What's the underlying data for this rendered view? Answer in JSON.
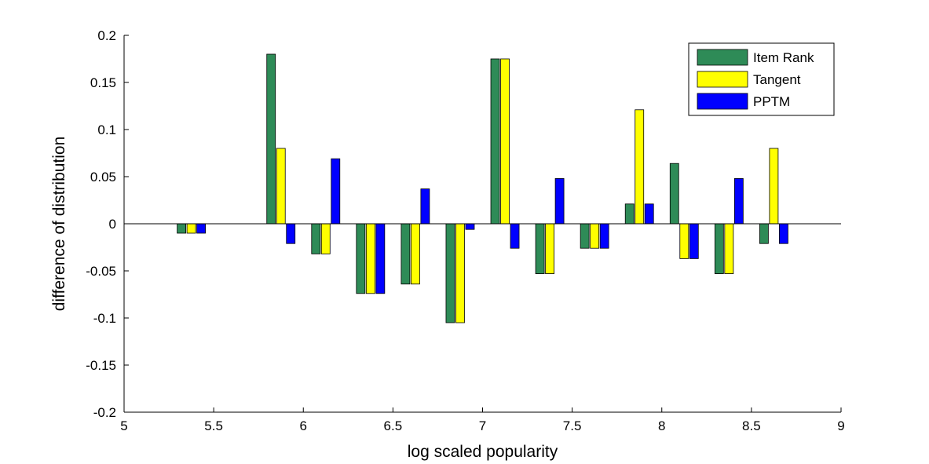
{
  "chart_data": {
    "type": "bar",
    "title": "",
    "xlabel": "log scaled popularity",
    "ylabel": "difference of distribution",
    "xlim": [
      5,
      9
    ],
    "ylim": [
      -0.2,
      0.2
    ],
    "xticks": [
      "5",
      "5.5",
      "6",
      "6.5",
      "7",
      "7.5",
      "8",
      "8.5",
      "9"
    ],
    "yticks": [
      "-0.2",
      "-0.15",
      "-0.1",
      "-0.05",
      "0",
      "0.05",
      "0.1",
      "0.15",
      "0.2"
    ],
    "grid": false,
    "legend_position": "top-right",
    "x": [
      5.375,
      5.875,
      6.125,
      6.375,
      6.625,
      6.875,
      7.125,
      7.375,
      7.625,
      7.875,
      8.125,
      8.375,
      8.625
    ],
    "series": [
      {
        "name": "Item Rank",
        "color": "#2e8b57",
        "values": [
          -0.01,
          0.18,
          -0.032,
          -0.074,
          -0.064,
          -0.105,
          0.175,
          -0.053,
          -0.026,
          0.021,
          0.064,
          -0.053,
          -0.021
        ]
      },
      {
        "name": "Tangent",
        "color": "#ffff00",
        "values": [
          -0.01,
          0.08,
          -0.032,
          -0.074,
          -0.064,
          -0.105,
          0.175,
          -0.053,
          -0.026,
          0.121,
          -0.037,
          -0.053,
          0.08
        ]
      },
      {
        "name": "PPTM",
        "color": "#0000ff",
        "values": [
          -0.01,
          -0.021,
          0.069,
          -0.074,
          0.037,
          -0.006,
          -0.026,
          0.048,
          -0.026,
          0.021,
          -0.037,
          0.048,
          -0.021
        ]
      }
    ]
  }
}
